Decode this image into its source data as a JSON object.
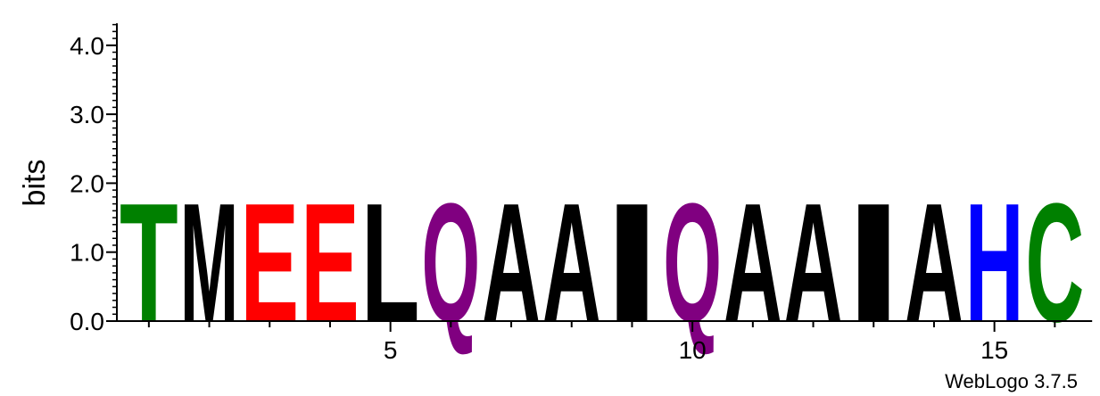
{
  "chart_data": {
    "type": "sequence-logo",
    "ylabel": "bits",
    "xlabel": "",
    "ylim": [
      0,
      4.32
    ],
    "yticks": [
      "0.0",
      "1.0",
      "2.0",
      "3.0",
      "4.0"
    ],
    "ytick_values": [
      0,
      1,
      2,
      3,
      4
    ],
    "xticks": [
      "5",
      "10",
      "15"
    ],
    "xtick_values": [
      5,
      10,
      15
    ],
    "positions": [
      {
        "pos": 1,
        "letter": "T",
        "bits": 1.77,
        "color": "#008000"
      },
      {
        "pos": 2,
        "letter": "M",
        "bits": 1.77,
        "color": "#000000"
      },
      {
        "pos": 3,
        "letter": "E",
        "bits": 1.77,
        "color": "#ff0000"
      },
      {
        "pos": 4,
        "letter": "E",
        "bits": 1.77,
        "color": "#ff0000"
      },
      {
        "pos": 5,
        "letter": "L",
        "bits": 1.77,
        "color": "#000000"
      },
      {
        "pos": 6,
        "letter": "Q",
        "bits": 1.77,
        "color": "#800080"
      },
      {
        "pos": 7,
        "letter": "A",
        "bits": 1.77,
        "color": "#000000"
      },
      {
        "pos": 8,
        "letter": "A",
        "bits": 1.77,
        "color": "#000000"
      },
      {
        "pos": 9,
        "letter": "I",
        "bits": 1.77,
        "color": "#000000"
      },
      {
        "pos": 10,
        "letter": "Q",
        "bits": 1.77,
        "color": "#800080"
      },
      {
        "pos": 11,
        "letter": "A",
        "bits": 1.77,
        "color": "#000000"
      },
      {
        "pos": 12,
        "letter": "A",
        "bits": 1.77,
        "color": "#000000"
      },
      {
        "pos": 13,
        "letter": "I",
        "bits": 1.77,
        "color": "#000000"
      },
      {
        "pos": 14,
        "letter": "A",
        "bits": 1.77,
        "color": "#000000"
      },
      {
        "pos": 15,
        "letter": "H",
        "bits": 1.77,
        "color": "#0000ff"
      },
      {
        "pos": 16,
        "letter": "C",
        "bits": 1.77,
        "color": "#008000"
      }
    ],
    "grid": false,
    "footer": "WebLogo 3.7.5"
  }
}
